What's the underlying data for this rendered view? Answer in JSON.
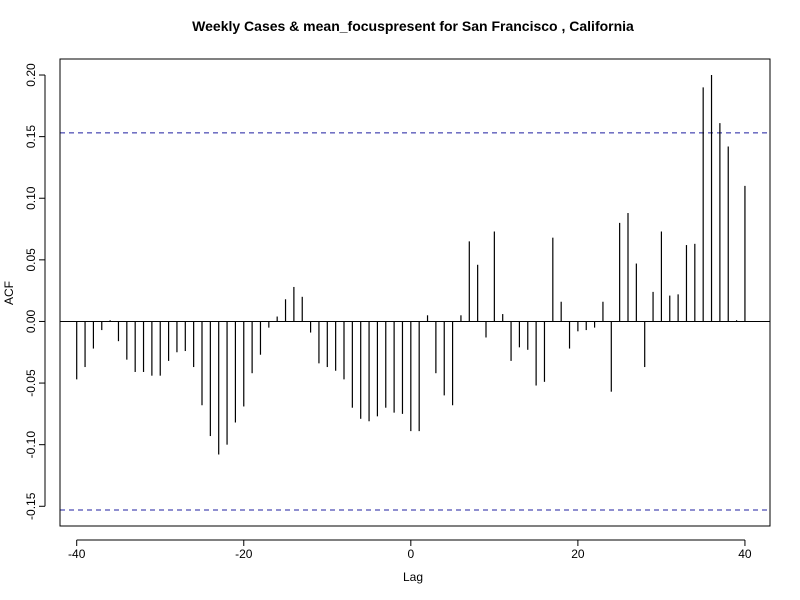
{
  "chart_data": {
    "type": "bar",
    "title": "Weekly Cases & mean_focuspresent for San Francisco , California",
    "xlabel": "Lag",
    "ylabel": "ACF",
    "xlim": [
      -42,
      43
    ],
    "ylim": [
      -0.166,
      0.213
    ],
    "x_ticks": [
      -40,
      -20,
      0,
      20,
      40
    ],
    "x_tick_labels": [
      "-40",
      "-20",
      "0",
      "20",
      "40"
    ],
    "y_ticks": [
      -0.15,
      -0.1,
      -0.05,
      0.0,
      0.05,
      0.1,
      0.15,
      0.2
    ],
    "y_tick_labels": [
      "-0.15",
      "-0.10",
      "-0.05",
      "0.00",
      "0.05",
      "0.10",
      "0.15",
      "0.20"
    ],
    "confidence_bound": 0.153,
    "zero_line": true,
    "series": [
      {
        "lags": [
          -40,
          -39,
          -38,
          -37,
          -36,
          -35,
          -34,
          -33,
          -32,
          -31,
          -30,
          -29,
          -28,
          -27,
          -26,
          -25,
          -24,
          -23,
          -22,
          -21,
          -20,
          -19,
          -18,
          -17,
          -16,
          -15,
          -14,
          -13,
          -12,
          -11,
          -10,
          -9,
          -8,
          -7,
          -6,
          -5,
          -4,
          -3,
          -2,
          -1,
          0,
          1,
          2,
          3,
          4,
          5,
          6,
          7,
          8,
          9,
          10,
          11,
          12,
          13,
          14,
          15,
          16,
          17,
          18,
          19,
          20,
          21,
          22,
          23,
          24,
          25,
          26,
          27,
          28,
          29,
          30,
          31,
          32,
          33,
          34,
          35,
          36,
          37,
          38,
          39,
          40
        ],
        "values": [
          -0.047,
          -0.037,
          -0.022,
          -0.007,
          0.001,
          -0.016,
          -0.031,
          -0.041,
          -0.041,
          -0.044,
          -0.044,
          -0.032,
          -0.025,
          -0.024,
          -0.037,
          -0.068,
          -0.093,
          -0.108,
          -0.1,
          -0.082,
          -0.069,
          -0.042,
          -0.027,
          -0.005,
          0.004,
          0.018,
          0.028,
          0.02,
          -0.009,
          -0.034,
          -0.037,
          -0.04,
          -0.047,
          -0.07,
          -0.079,
          -0.081,
          -0.077,
          -0.07,
          -0.074,
          -0.075,
          -0.089,
          -0.089,
          0.005,
          -0.042,
          -0.06,
          -0.068,
          0.005,
          0.065,
          0.046,
          -0.013,
          0.073,
          0.006,
          -0.032,
          -0.021,
          -0.023,
          -0.052,
          -0.049,
          0.068,
          0.016,
          -0.022,
          -0.008,
          -0.007,
          -0.005,
          0.016,
          -0.057,
          0.08,
          0.088,
          0.047,
          -0.037,
          0.024,
          0.073,
          0.021,
          0.022,
          0.062,
          0.063,
          0.19,
          0.2,
          0.161,
          0.142,
          0.001,
          0.11
        ]
      }
    ]
  }
}
